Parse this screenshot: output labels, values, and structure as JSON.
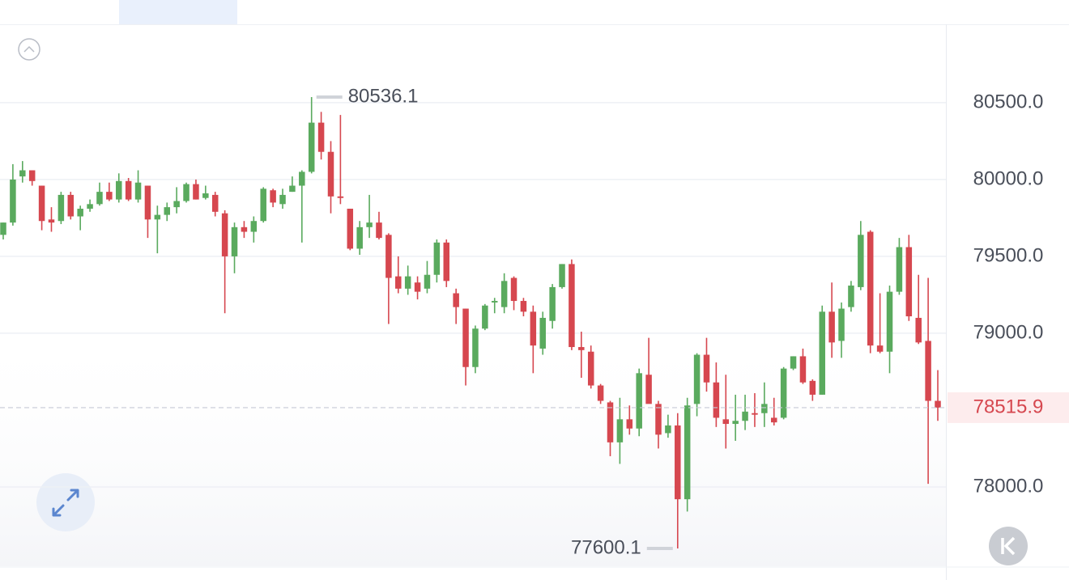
{
  "chart_data": {
    "type": "candlestick",
    "open": [
      79640,
      79720,
      80020,
      80060,
      79960,
      79740,
      79730,
      79900,
      79760,
      79810,
      79840,
      79920,
      79870,
      79990,
      79870,
      79960,
      79740,
      79770,
      79820,
      79860,
      79970,
      79880,
      79900,
      79780,
      79500,
      79690,
      79660,
      79730,
      79930,
      79840,
      79920,
      79960,
      80050,
      80370,
      80180,
      79890,
      79810,
      79550,
      79690,
      79720,
      79640,
      79370,
      79290,
      79330,
      79290,
      79380,
      79590,
      79260,
      79160,
      78780,
      79030,
      79200,
      79170,
      79360,
      79210,
      79140,
      78900,
      79080,
      79300,
      79450,
      78910,
      78880,
      78660,
      78550,
      78290,
      78440,
      78380,
      78730,
      78540,
      78350,
      78400,
      77920,
      78540,
      78860,
      78680,
      78440,
      78410,
      78430,
      78480,
      78480,
      78450,
      78450,
      78770,
      78850,
      78690,
      78600,
      79140,
      78950,
      79170,
      79300,
      79660,
      78920,
      78880,
      79270,
      79560,
      79100,
      78950,
      78560
    ],
    "high": [
      79720,
      80100,
      80120,
      80060,
      79960,
      79820,
      79920,
      79920,
      79830,
      79870,
      79980,
      79980,
      80040,
      80010,
      80060,
      79960,
      79830,
      79850,
      79950,
      79980,
      80000,
      79960,
      79920,
      79800,
      79720,
      79730,
      79760,
      79950,
      79940,
      79940,
      80020,
      80060,
      80536.1,
      80440,
      80250,
      80420,
      79810,
      79730,
      79900,
      79790,
      79650,
      79500,
      79440,
      79370,
      79470,
      79610,
      79610,
      79290,
      79160,
      79050,
      79190,
      79230,
      79390,
      79370,
      79230,
      79180,
      79140,
      79320,
      79450,
      79480,
      79010,
      78920,
      78670,
      78560,
      78580,
      78530,
      78770,
      78970,
      78560,
      78470,
      78480,
      78580,
      78870,
      78970,
      78810,
      78730,
      78600,
      78600,
      78610,
      78680,
      78580,
      78780,
      78850,
      78900,
      78700,
      79180,
      79330,
      79200,
      79340,
      79730,
      79670,
      79260,
      79310,
      79620,
      79640,
      79380,
      79360,
      78760
    ],
    "low": [
      79610,
      79700,
      79980,
      79960,
      79670,
      79660,
      79710,
      79740,
      79670,
      79790,
      79830,
      79860,
      79850,
      79860,
      79850,
      79620,
      79520,
      79730,
      79780,
      79850,
      79870,
      79870,
      79760,
      79130,
      79390,
      79620,
      79590,
      79720,
      79820,
      79810,
      79920,
      79590,
      80040,
      80130,
      79780,
      79840,
      79540,
      79510,
      79620,
      79610,
      79060,
      79260,
      79250,
      79220,
      79260,
      79330,
      79300,
      79060,
      78660,
      78740,
      79020,
      79130,
      79130,
      79150,
      79110,
      78740,
      78860,
      79030,
      79290,
      78890,
      78710,
      78640,
      78540,
      78200,
      78150,
      78340,
      78330,
      78560,
      78250,
      78320,
      77600.1,
      77840,
      78460,
      78620,
      78390,
      78250,
      78300,
      78370,
      78390,
      78390,
      78400,
      78440,
      78760,
      78670,
      78560,
      78600,
      78840,
      78840,
      79140,
      79280,
      78870,
      78870,
      78740,
      79250,
      79080,
      78930,
      78020,
      78430
    ],
    "close": [
      79720,
      80000,
      80060,
      79990,
      79730,
      79720,
      79900,
      79760,
      79810,
      79840,
      79920,
      79870,
      79990,
      79870,
      79980,
      79740,
      79770,
      79820,
      79860,
      79970,
      79870,
      79910,
      79790,
      79500,
      79690,
      79660,
      79730,
      79940,
      79850,
      79900,
      79960,
      80050,
      80370,
      80180,
      79890,
      79880,
      79550,
      79690,
      79720,
      79620,
      79360,
      79290,
      79370,
      79270,
      79380,
      79590,
      79340,
      79170,
      78780,
      79030,
      79180,
      79210,
      79340,
      79210,
      79140,
      78920,
      79100,
      79300,
      79450,
      78910,
      78890,
      78660,
      78560,
      78290,
      78440,
      78380,
      78740,
      78540,
      78340,
      78400,
      77920,
      78530,
      78860,
      78680,
      78450,
      78410,
      78430,
      78490,
      78470,
      78540,
      78420,
      78770,
      78850,
      78680,
      78600,
      79140,
      78940,
      79160,
      79310,
      79640,
      78920,
      78880,
      79270,
      79560,
      79110,
      78940,
      78560,
      78515.9
    ],
    "up_color": "#5aaa5e",
    "down_color": "#d6474f",
    "ylim": [
      77484,
      81010
    ],
    "yticks": [
      {
        "value": 80500,
        "label": "80500.0"
      },
      {
        "value": 80000,
        "label": "80000.0"
      },
      {
        "value": 79500,
        "label": "79500.0"
      },
      {
        "value": 79000,
        "label": "79000.0"
      },
      {
        "value": 78000,
        "label": "78000.0"
      }
    ],
    "grid": true
  }
}
